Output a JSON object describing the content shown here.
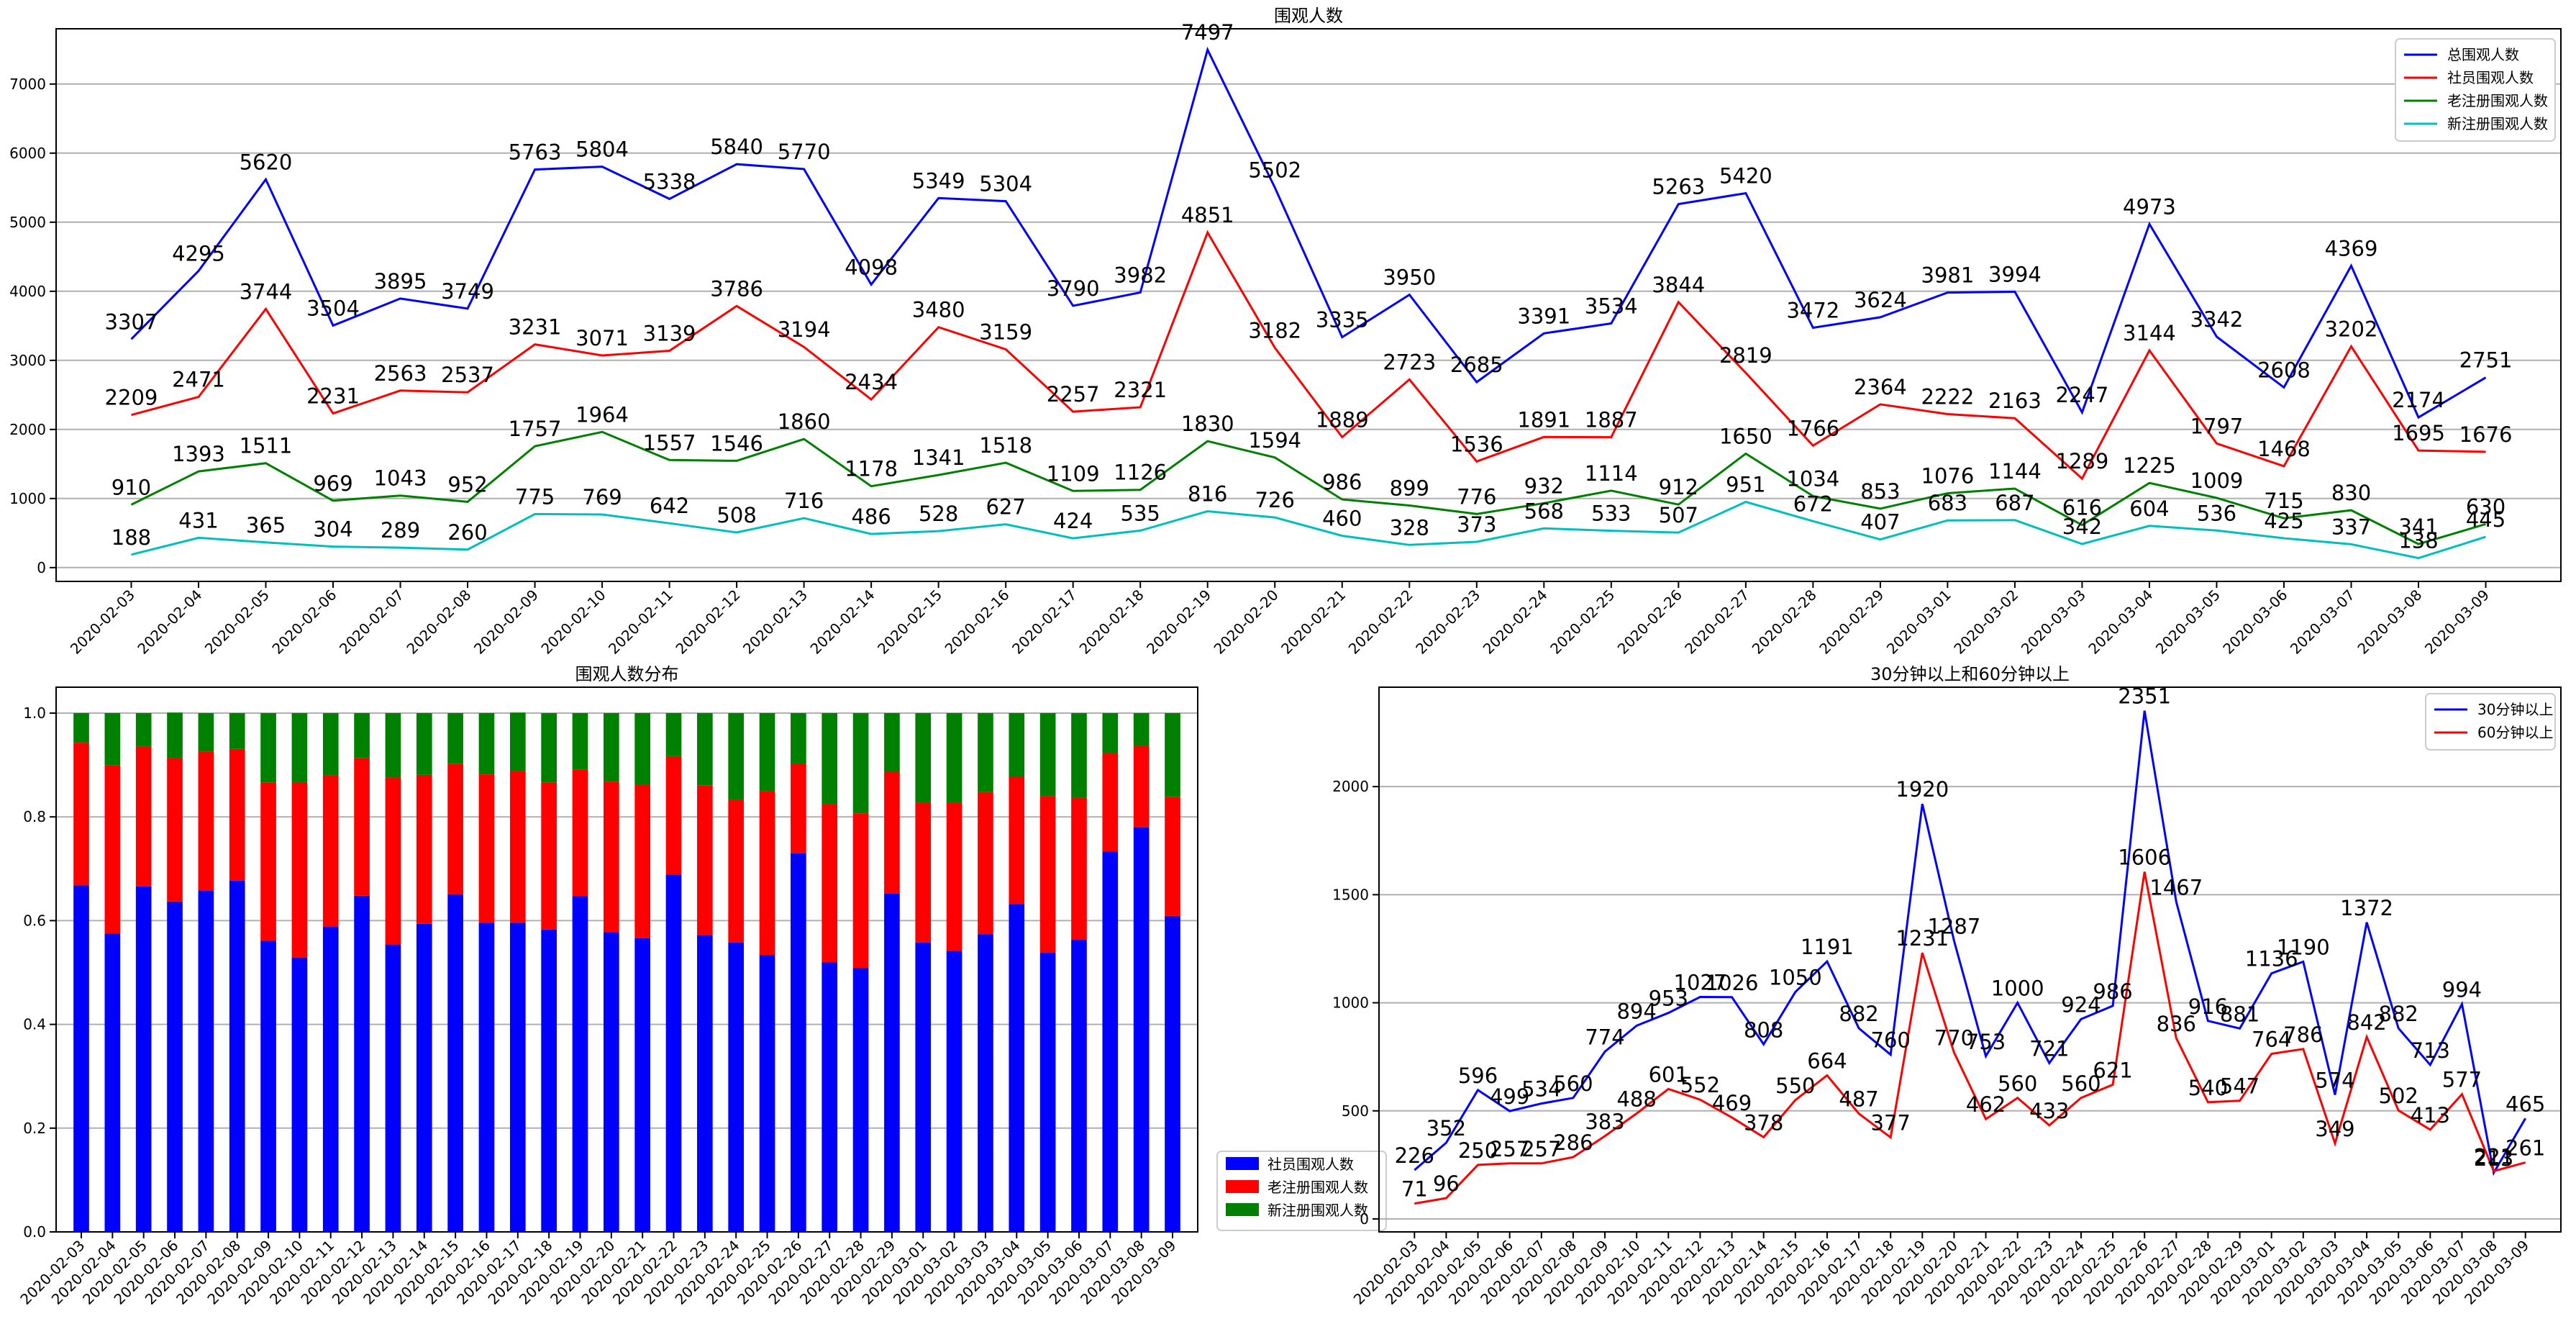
{
  "chart_data": [
    {
      "type": "line",
      "title": "围观人数",
      "categories": [
        "2020-02-03",
        "2020-02-04",
        "2020-02-05",
        "2020-02-06",
        "2020-02-07",
        "2020-02-08",
        "2020-02-09",
        "2020-02-10",
        "2020-02-11",
        "2020-02-12",
        "2020-02-13",
        "2020-02-14",
        "2020-02-15",
        "2020-02-16",
        "2020-02-17",
        "2020-02-18",
        "2020-02-19",
        "2020-02-20",
        "2020-02-21",
        "2020-02-22",
        "2020-02-23",
        "2020-02-24",
        "2020-02-25",
        "2020-02-26",
        "2020-02-27",
        "2020-02-28",
        "2020-02-29",
        "2020-03-01",
        "2020-03-02",
        "2020-03-03",
        "2020-03-04",
        "2020-03-05",
        "2020-03-06",
        "2020-03-07",
        "2020-03-08",
        "2020-03-09"
      ],
      "ylim": [
        -200,
        7800
      ],
      "yticks": [
        0,
        1000,
        2000,
        3000,
        4000,
        5000,
        6000,
        7000
      ],
      "grid": true,
      "legend": "top-right",
      "series": [
        {
          "name": "总围观人数",
          "color": "#0000ff",
          "values": [
            3307,
            4295,
            5620,
            3504,
            3895,
            3749,
            5763,
            5804,
            5338,
            5840,
            5770,
            4098,
            5349,
            5304,
            3790,
            3982,
            7497,
            5502,
            3335,
            3950,
            2685,
            3391,
            3534,
            5263,
            5420,
            3472,
            3624,
            3981,
            3994,
            2247,
            4973,
            3342,
            2608,
            4369,
            2174,
            2751
          ]
        },
        {
          "name": "社员围观人数",
          "color": "#ff0000",
          "values": [
            2209,
            2471,
            3744,
            2231,
            2563,
            2537,
            3231,
            3071,
            3139,
            3786,
            3194,
            2434,
            3480,
            3159,
            2257,
            2321,
            4851,
            3182,
            1889,
            2723,
            1536,
            1891,
            1887,
            3844,
            2819,
            1766,
            2364,
            2222,
            2163,
            1289,
            3144,
            1797,
            1468,
            3202,
            1695,
            1676
          ]
        },
        {
          "name": "老注册围观人数",
          "color": "#008000",
          "values": [
            910,
            1393,
            1511,
            969,
            1043,
            952,
            1757,
            1964,
            1557,
            1546,
            1860,
            1178,
            1341,
            1518,
            1109,
            1126,
            1830,
            1594,
            986,
            899,
            776,
            932,
            1114,
            912,
            1650,
            1034,
            853,
            1076,
            1144,
            616,
            1225,
            1009,
            715,
            830,
            341,
            630
          ]
        },
        {
          "name": "新注册围观人数",
          "color": "#00bfbf",
          "values": [
            188,
            431,
            365,
            304,
            289,
            260,
            775,
            769,
            642,
            508,
            716,
            486,
            528,
            627,
            424,
            535,
            816,
            726,
            460,
            328,
            373,
            568,
            533,
            507,
            951,
            672,
            407,
            683,
            687,
            342,
            604,
            536,
            425,
            337,
            138,
            445
          ]
        }
      ]
    },
    {
      "type": "bar",
      "stacked": true,
      "title": "围观人数分布",
      "categories": [
        "2020-02-03",
        "2020-02-04",
        "2020-02-05",
        "2020-02-06",
        "2020-02-07",
        "2020-02-08",
        "2020-02-09",
        "2020-02-10",
        "2020-02-11",
        "2020-02-12",
        "2020-02-13",
        "2020-02-14",
        "2020-02-15",
        "2020-02-16",
        "2020-02-17",
        "2020-02-18",
        "2020-02-19",
        "2020-02-20",
        "2020-02-21",
        "2020-02-22",
        "2020-02-23",
        "2020-02-24",
        "2020-02-25",
        "2020-02-26",
        "2020-02-27",
        "2020-02-28",
        "2020-02-29",
        "2020-03-01",
        "2020-03-02",
        "2020-03-03",
        "2020-03-04",
        "2020-03-05",
        "2020-03-06",
        "2020-03-07",
        "2020-03-08",
        "2020-03-09"
      ],
      "ylim": [
        0,
        1.05
      ],
      "yticks": [
        0.0,
        0.2,
        0.4,
        0.6,
        0.8,
        1.0
      ],
      "yticklabels": [
        "0.0",
        "0.2",
        "0.4",
        "0.6",
        "0.8",
        "1.0"
      ],
      "grid": true,
      "legend": "outside-lower-right",
      "series": [
        {
          "name": "社员围观人数",
          "color": "#0000ff",
          "values": [
            0.668,
            0.575,
            0.666,
            0.637,
            0.658,
            0.677,
            0.561,
            0.529,
            0.588,
            0.648,
            0.554,
            0.594,
            0.651,
            0.596,
            0.596,
            0.583,
            0.647,
            0.578,
            0.566,
            0.689,
            0.572,
            0.558,
            0.534,
            0.73,
            0.52,
            0.509,
            0.652,
            0.558,
            0.542,
            0.574,
            0.632,
            0.538,
            0.563,
            0.733,
            0.78,
            0.609
          ]
        },
        {
          "name": "老注册围观人数",
          "color": "#ff0000",
          "values": [
            0.275,
            0.324,
            0.269,
            0.277,
            0.268,
            0.254,
            0.305,
            0.338,
            0.292,
            0.265,
            0.322,
            0.287,
            0.251,
            0.286,
            0.293,
            0.283,
            0.244,
            0.29,
            0.296,
            0.228,
            0.289,
            0.275,
            0.315,
            0.173,
            0.304,
            0.298,
            0.235,
            0.27,
            0.286,
            0.274,
            0.246,
            0.302,
            0.274,
            0.19,
            0.157,
            0.229
          ]
        },
        {
          "name": "新注册围观人数",
          "color": "#008000",
          "values": [
            0.057,
            0.101,
            0.065,
            0.087,
            0.074,
            0.069,
            0.134,
            0.133,
            0.12,
            0.087,
            0.124,
            0.119,
            0.098,
            0.118,
            0.112,
            0.134,
            0.109,
            0.132,
            0.138,
            0.083,
            0.139,
            0.167,
            0.151,
            0.097,
            0.176,
            0.193,
            0.113,
            0.172,
            0.172,
            0.152,
            0.122,
            0.16,
            0.163,
            0.077,
            0.063,
            0.162
          ]
        }
      ]
    },
    {
      "type": "line",
      "title": "30分钟以上和60分钟以上",
      "categories": [
        "2020-02-03",
        "2020-02-04",
        "2020-02-05",
        "2020-02-06",
        "2020-02-07",
        "2020-02-08",
        "2020-02-09",
        "2020-02-10",
        "2020-02-11",
        "2020-02-12",
        "2020-02-13",
        "2020-02-14",
        "2020-02-15",
        "2020-02-16",
        "2020-02-17",
        "2020-02-18",
        "2020-02-19",
        "2020-02-20",
        "2020-02-21",
        "2020-02-22",
        "2020-02-23",
        "2020-02-24",
        "2020-02-25",
        "2020-02-26",
        "2020-02-27",
        "2020-02-28",
        "2020-02-29",
        "2020-03-01",
        "2020-03-02",
        "2020-03-03",
        "2020-03-04",
        "2020-03-05",
        "2020-03-06",
        "2020-03-07",
        "2020-03-08",
        "2020-03-09"
      ],
      "ylim": [
        -60,
        2460
      ],
      "yticks": [
        0,
        500,
        1000,
        1500,
        2000
      ],
      "grid": true,
      "legend": "top-right",
      "series": [
        {
          "name": "30分钟以上",
          "color": "#0000ff",
          "values": [
            226,
            352,
            596,
            499,
            534,
            560,
            774,
            894,
            953,
            1027,
            1026,
            808,
            1050,
            1191,
            882,
            760,
            1920,
            1287,
            753,
            1000,
            721,
            924,
            986,
            2351,
            1467,
            916,
            881,
            1136,
            1190,
            574,
            1372,
            882,
            713,
            994,
            213,
            465
          ]
        },
        {
          "name": "60分钟以上",
          "color": "#ff0000",
          "values": [
            71,
            96,
            250,
            257,
            257,
            286,
            383,
            488,
            601,
            552,
            469,
            378,
            550,
            664,
            487,
            377,
            1231,
            770,
            462,
            560,
            433,
            560,
            621,
            1606,
            836,
            540,
            547,
            764,
            786,
            349,
            842,
            502,
            413,
            577,
            221,
            261
          ]
        }
      ]
    }
  ]
}
